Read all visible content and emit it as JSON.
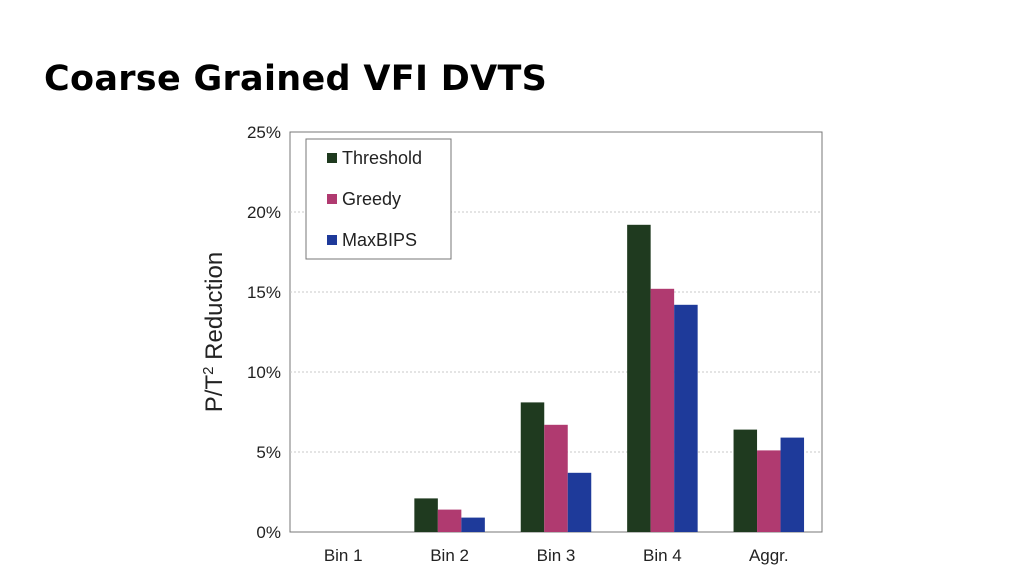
{
  "slide": {
    "title": "Coarse Grained VFI DVTS"
  },
  "chart_data": {
    "type": "bar",
    "ylabel": "P/T",
    "ylabel_superscript": "2",
    "ylabel_suffix": " Reduction",
    "xlabel": "",
    "ylim": [
      0,
      25
    ],
    "y_ticks": [
      {
        "value": 0,
        "label": "0%"
      },
      {
        "value": 5,
        "label": "5%"
      },
      {
        "value": 10,
        "label": "10%"
      },
      {
        "value": 15,
        "label": "15%"
      },
      {
        "value": 20,
        "label": "20%"
      },
      {
        "value": 25,
        "label": "25%"
      }
    ],
    "categories": [
      "Bin 1",
      "Bin 2",
      "Bin 3",
      "Bin 4",
      "Aggr."
    ],
    "series": [
      {
        "name": "Threshold",
        "color": "#1f3a1f",
        "values": [
          0,
          2.1,
          8.1,
          19.2,
          6.4
        ]
      },
      {
        "name": "Greedy",
        "color": "#b03a70",
        "values": [
          0,
          1.4,
          6.7,
          15.2,
          5.1
        ]
      },
      {
        "name": "MaxBIPS",
        "color": "#1e3a9a",
        "values": [
          0,
          0.9,
          3.7,
          14.2,
          5.9
        ]
      }
    ],
    "grid": true,
    "legend_position": "top-left"
  }
}
